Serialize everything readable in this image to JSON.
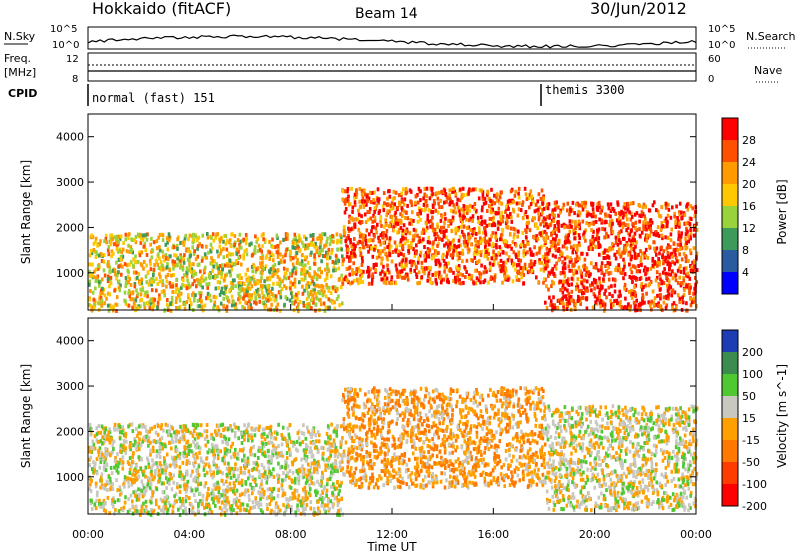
{
  "header": {
    "station": "Hokkaido (fitACF)",
    "beam": "Beam 14",
    "date": "30/Jun/2012"
  },
  "top_panel": {
    "left_label_1": "N.Sky",
    "left_label_2": "Freq.",
    "left_label_3": "[MHz]",
    "left_label_4": "CPID",
    "right_label_1": "N.Search",
    "right_label_2": "Nave",
    "nsky_ticks": [
      "10^5",
      "10^0"
    ],
    "nsearch_ticks": [
      "10^5",
      "10^0"
    ],
    "freq_ticks": [
      "12",
      "8"
    ],
    "nave_ticks": [
      "60",
      "0"
    ],
    "cpid_1": "normal (fast) 151",
    "cpid_2": "themis 3300"
  },
  "power_colorbar": {
    "label": "Power [dB]",
    "ticks": [
      "28",
      "24",
      "20",
      "16",
      "12",
      "8",
      "4"
    ],
    "colors": [
      "#ff0000",
      "#ff5000",
      "#ff9a00",
      "#ffc800",
      "#9ad23c",
      "#3c9a5a",
      "#2a5aa0",
      "#0000ff"
    ]
  },
  "velocity_colorbar": {
    "label": "Velocity [m s^-1]",
    "ticks": [
      "200",
      "100",
      "50",
      "15",
      "-15",
      "-50",
      "-100",
      "-200"
    ],
    "colors": [
      "#1e3cb4",
      "#3c8c50",
      "#50c832",
      "#c8c8c0",
      "#ffa000",
      "#ff7800",
      "#ff3c00",
      "#ff0000"
    ]
  },
  "axes": {
    "ylabel": "Slant Range [km]",
    "xlabel": "Time UT",
    "y_ticks": [
      "4000",
      "3000",
      "2000",
      "1000"
    ],
    "x_ticks": [
      "00:00",
      "04:00",
      "08:00",
      "12:00",
      "16:00",
      "20:00",
      "00:00"
    ]
  },
  "chart_data": [
    {
      "type": "heatmap",
      "title": "Power",
      "ylabel": "Slant Range [km]",
      "ylim": [
        180,
        4500
      ],
      "xlim_hours": [
        0,
        24
      ],
      "colorbar": "Power [dB]",
      "regions": [
        {
          "x": [
            0,
            10
          ],
          "y": [
            200,
            1900
          ],
          "value_db": 18
        },
        {
          "x": [
            10,
            18
          ],
          "y": [
            800,
            2900
          ],
          "value_db": 26
        },
        {
          "x": [
            18,
            24
          ],
          "y": [
            200,
            2600
          ],
          "value_db": 28
        }
      ]
    },
    {
      "type": "heatmap",
      "title": "Velocity",
      "ylabel": "Slant Range [km]",
      "ylim": [
        180,
        4500
      ],
      "xlim_hours": [
        0,
        24
      ],
      "colorbar": "Velocity [m s^-1]",
      "regions": [
        {
          "x": [
            0,
            10
          ],
          "y": [
            200,
            2200
          ],
          "value_ms": -5
        },
        {
          "x": [
            10,
            18
          ],
          "y": [
            800,
            3000
          ],
          "value_ms": -40
        },
        {
          "x": [
            18,
            24
          ],
          "y": [
            300,
            2600
          ],
          "value_ms": -5
        }
      ]
    }
  ]
}
